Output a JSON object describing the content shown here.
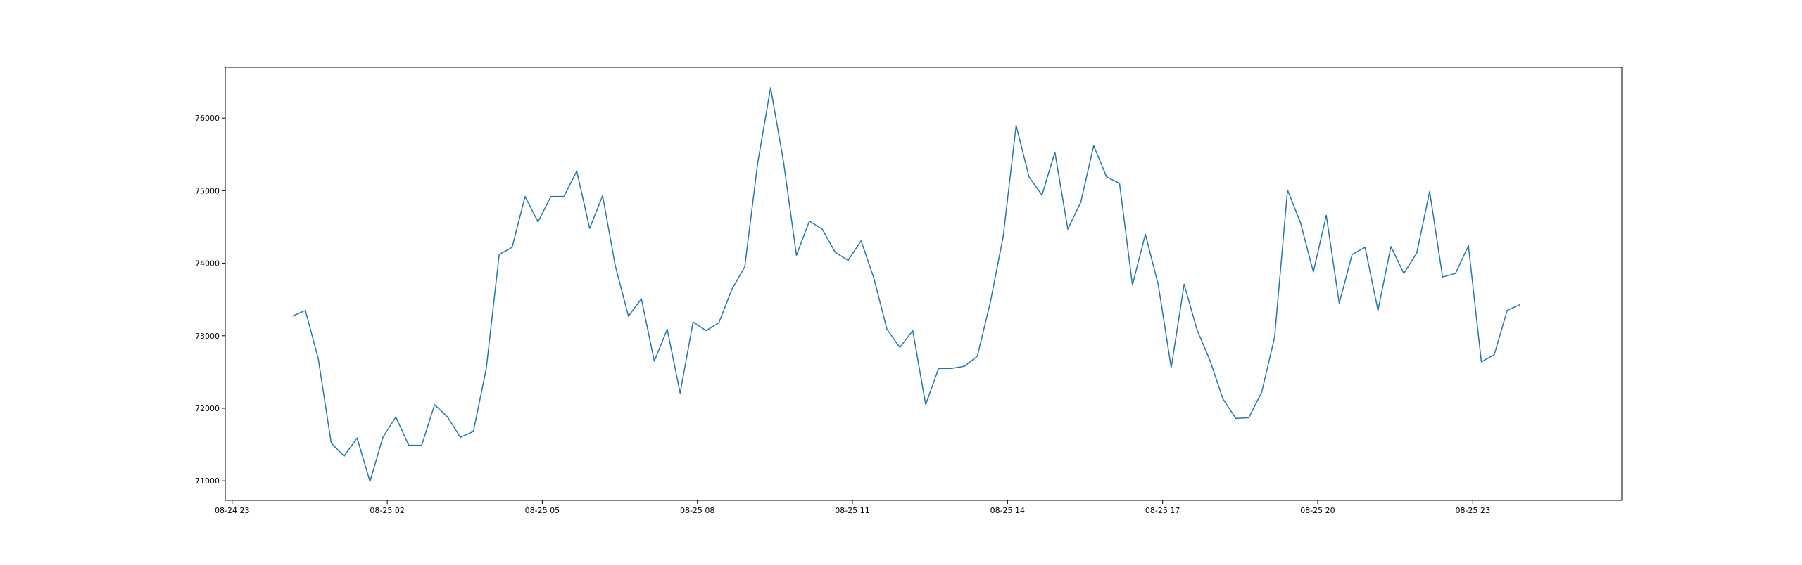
{
  "chart_data": {
    "type": "line",
    "title": "",
    "xlabel": "",
    "ylabel": "",
    "grid": false,
    "legend": "none",
    "x_ticks": [
      "08-24 23",
      "08-25 02",
      "08-25 05",
      "08-25 08",
      "08-25 11",
      "08-25 14",
      "08-25 17",
      "08-25 20",
      "08-25 23"
    ],
    "y_ticks": [
      71000,
      72000,
      73000,
      74000,
      75000,
      76000
    ],
    "xlim": [
      "2024-08-24 22:52",
      "2024-08-26 01:53"
    ],
    "ylim": [
      70730,
      76700
    ],
    "series": [
      {
        "color": "#1f77b4",
        "x_start": "2024-08-25 00:10",
        "x_step_minutes": 15,
        "values": [
          73270,
          73350,
          72680,
          71520,
          71340,
          71590,
          70990,
          71600,
          71880,
          71490,
          71490,
          72050,
          71880,
          71600,
          71680,
          72550,
          74120,
          74220,
          74920,
          74570,
          74920,
          74920,
          75270,
          74480,
          74930,
          73950,
          73270,
          73510,
          72650,
          73090,
          72210,
          73190,
          73070,
          73180,
          73640,
          73950,
          75380,
          76420,
          75400,
          74110,
          74580,
          74470,
          74150,
          74040,
          74310,
          73790,
          73090,
          72840,
          73070,
          72050,
          72550,
          72550,
          72580,
          72720,
          73460,
          74370,
          75900,
          75190,
          74940,
          75530,
          74470,
          74840,
          75620,
          75190,
          75100,
          73700,
          74400,
          73700,
          72560,
          73710,
          73080,
          72660,
          72130,
          71860,
          71870,
          72220,
          72980,
          75010,
          74560,
          73880,
          74660,
          73450,
          74120,
          74220,
          73350,
          74230,
          73860,
          74140,
          74990,
          73810,
          73860,
          74240,
          72640,
          72740,
          73350,
          73430
        ]
      }
    ]
  }
}
